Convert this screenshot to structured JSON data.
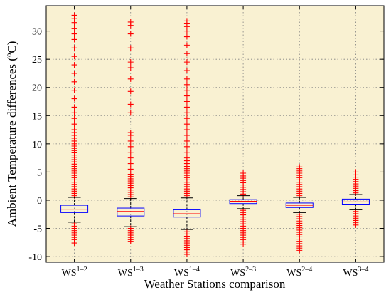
{
  "chart_data": {
    "type": "boxplot",
    "xlabel": "Weather Stations comparison",
    "ylabel": "Ambient Temperature differences (ºC)",
    "ylim": [
      -11,
      34.5
    ],
    "yticks": [
      -10,
      -5,
      0,
      5,
      10,
      15,
      20,
      25,
      30
    ],
    "grid": true,
    "colors": {
      "background": "#f9f1d2",
      "box": "#0000ff",
      "median": "#ff0000",
      "whisker": "#000000",
      "outlier": "#ff0000",
      "grid": "#7f7f7f"
    },
    "categories": [
      {
        "base": "WS",
        "sup": "1–2"
      },
      {
        "base": "WS",
        "sup": "1–3"
      },
      {
        "base": "WS",
        "sup": "1–4"
      },
      {
        "base": "WS",
        "sup": "2–3"
      },
      {
        "base": "WS",
        "sup": "2–4"
      },
      {
        "base": "WS",
        "sup": "3–4"
      }
    ],
    "boxes": [
      {
        "q1": -2.2,
        "median": -1.6,
        "q3": -0.9,
        "whisker_low": -3.9,
        "whisker_high": 0.5,
        "outliers_high": [
          0.8,
          1.2,
          1.6,
          2.0,
          2.4,
          2.8,
          3.2,
          3.6,
          4.0,
          4.4,
          4.8,
          5.2,
          5.6,
          6.0,
          6.4,
          6.8,
          7.2,
          7.6,
          8.0,
          8.4,
          8.8,
          9.2,
          9.6,
          10.0,
          10.5,
          11.0,
          11.5,
          12.0,
          12.5,
          13.5,
          14.5,
          15.5,
          16.5,
          18.0,
          19.5,
          21.0,
          22.5,
          24.0,
          25.5,
          27.0,
          28.5,
          29.5,
          30.5,
          31.5,
          32.2,
          32.8
        ],
        "outliers_low": [
          -4.2,
          -4.6,
          -5.0,
          -5.4,
          -5.8,
          -6.2,
          -6.6,
          -7.0,
          -7.6
        ]
      },
      {
        "q1": -2.8,
        "median": -2.0,
        "q3": -1.4,
        "whisker_low": -4.7,
        "whisker_high": 0.3,
        "outliers_high": [
          0.6,
          1.0,
          1.4,
          1.8,
          2.2,
          2.6,
          3.0,
          3.4,
          3.8,
          4.2,
          4.6,
          5.5,
          6.5,
          7.5,
          8.5,
          9.5,
          10.5,
          11.5,
          12.0,
          15.5,
          17.0,
          19.3,
          21.5,
          23.5,
          24.5,
          27.0,
          29.5,
          31.0,
          31.6
        ],
        "outliers_low": [
          -5.0,
          -5.4,
          -5.8,
          -6.2,
          -6.6,
          -7.0,
          -7.3
        ]
      },
      {
        "q1": -3.0,
        "median": -2.4,
        "q3": -1.7,
        "whisker_low": -5.2,
        "whisker_high": 0.4,
        "outliers_high": [
          0.8,
          1.2,
          1.6,
          2.0,
          2.4,
          2.8,
          3.2,
          3.6,
          4.0,
          4.4,
          4.8,
          5.2,
          5.6,
          6.0,
          6.5,
          7.0,
          7.5,
          8.5,
          9.5,
          10.5,
          11.5,
          12.5,
          13.5,
          14.5,
          15.5,
          16.5,
          17.5,
          18.5,
          19.5,
          20.5,
          21.5,
          23.0,
          24.5,
          26.0,
          27.5,
          29.0,
          30.0,
          30.8,
          31.4,
          31.8
        ],
        "outliers_low": [
          -5.6,
          -6.0,
          -6.4,
          -6.8,
          -7.2,
          -7.6,
          -8.0,
          -8.4,
          -8.8,
          -9.2,
          -9.6
        ]
      },
      {
        "q1": -0.6,
        "median": -0.2,
        "q3": 0.1,
        "whisker_low": -1.5,
        "whisker_high": 0.8,
        "outliers_high": [
          1.1,
          1.5,
          1.9,
          2.3,
          2.7,
          3.1,
          3.5,
          3.9,
          4.3,
          4.8
        ],
        "outliers_low": [
          -1.8,
          -2.2,
          -2.6,
          -3.0,
          -3.4,
          -3.8,
          -4.2,
          -4.6,
          -5.0,
          -5.4,
          -5.8,
          -6.2,
          -6.6,
          -7.0,
          -7.4,
          -7.8
        ]
      },
      {
        "q1": -1.3,
        "median": -0.9,
        "q3": -0.5,
        "whisker_low": -2.2,
        "whisker_high": 0.5,
        "outliers_high": [
          0.8,
          1.2,
          1.6,
          2.0,
          2.4,
          2.8,
          3.2,
          3.6,
          4.0,
          4.4,
          4.8,
          5.2,
          5.6,
          5.9
        ],
        "outliers_low": [
          -2.5,
          -2.9,
          -3.3,
          -3.7,
          -4.1,
          -4.5,
          -4.9,
          -5.3,
          -5.7,
          -6.1,
          -6.5,
          -6.9,
          -7.3,
          -7.7,
          -8.1,
          -8.5,
          -8.9
        ]
      },
      {
        "q1": -0.7,
        "median": -0.3,
        "q3": 0.2,
        "whisker_low": -1.7,
        "whisker_high": 1.0,
        "outliers_high": [
          1.3,
          1.7,
          2.1,
          2.5,
          2.9,
          3.3,
          3.7,
          4.1,
          4.5,
          5.0
        ],
        "outliers_low": [
          -2.0,
          -2.4,
          -2.8,
          -3.2,
          -3.6,
          -4.0,
          -4.4
        ]
      }
    ]
  }
}
